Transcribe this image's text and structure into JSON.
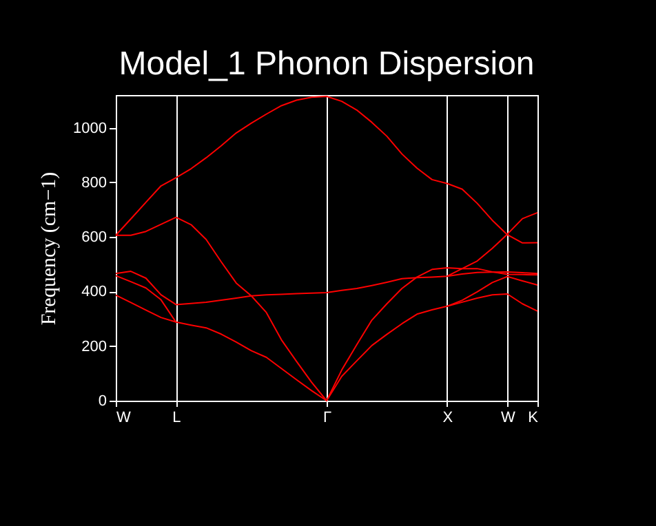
{
  "chart_data": {
    "type": "line",
    "title": "Model_1 Phonon Dispersion",
    "ylabel": "Frequency (cm−1)",
    "categories": [
      "W",
      null,
      null,
      null,
      "L",
      null,
      null,
      null,
      null,
      null,
      null,
      null,
      null,
      null,
      "Γ",
      null,
      null,
      null,
      null,
      null,
      null,
      null,
      "X",
      null,
      null,
      null,
      "W",
      null,
      "K"
    ],
    "ylim": [
      0,
      1120
    ],
    "yticks": [
      0,
      200,
      400,
      600,
      800,
      1000
    ],
    "grid": "x",
    "legend": false,
    "line_style": "solid",
    "marker": "none",
    "series": [
      {
        "color": "#ff0000",
        "values": [
          606,
          666,
          727,
          787,
          817,
          850,
          890,
          934,
          981,
          1017,
          1050,
          1081,
          1101,
          1112,
          1115,
          1097,
          1065,
          1020,
          969,
          904,
          852,
          810,
          796,
          775,
          723,
          661,
          608,
          578,
          579
        ]
      },
      {
        "color": "#ff0000",
        "values": [
          606,
          606,
          620,
          646,
          672,
          645,
          591,
          509,
          431,
          384,
          323,
          223,
          144,
          68,
          0,
          112,
          205,
          295,
          355,
          411,
          453,
          481,
          487,
          484,
          512,
          558,
          610,
          667,
          689
        ]
      },
      {
        "color": "#ff0000",
        "values": [
          466,
          474,
          449,
          388,
          352,
          356,
          361,
          368,
          376,
          384,
          388,
          390,
          392,
          394,
          396,
          404,
          411,
          422,
          434,
          447,
          451,
          453,
          456,
          464,
          470,
          471,
          472,
          469,
          466
        ]
      },
      {
        "color": "#ff0000",
        "values": [
          458,
          436,
          413,
          370,
          288,
          277,
          267,
          244,
          215,
          183,
          159,
          118,
          77,
          37,
          0,
          89,
          146,
          202,
          243,
          282,
          317,
          333,
          346,
          361,
          376,
          388,
          391,
          355,
          328
        ]
      },
      {
        "color": "#ff0000",
        "values": [
          387,
          360,
          332,
          305,
          288,
          null,
          null,
          null,
          null,
          null,
          null,
          null,
          null,
          null,
          null,
          null,
          null,
          null,
          null,
          null,
          null,
          null,
          346,
          368,
          399,
          433,
          455,
          439,
          424
        ]
      },
      {
        "color": "#ff0000",
        "values": [
          null,
          null,
          null,
          null,
          null,
          null,
          null,
          null,
          null,
          null,
          null,
          null,
          null,
          null,
          null,
          null,
          null,
          null,
          null,
          null,
          null,
          null,
          456,
          484,
          484,
          472,
          463,
          462,
          461
        ]
      }
    ]
  }
}
